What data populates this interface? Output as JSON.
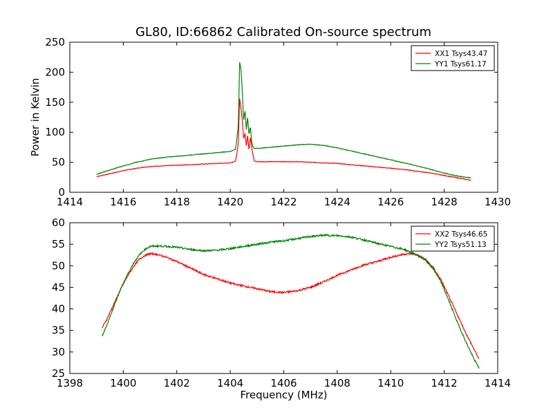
{
  "title": "GL80, ID:66862 Calibrated On-source spectrum",
  "colors": {
    "xx": "#ff0000",
    "yy": "#008000"
  },
  "chart_data": [
    {
      "type": "line",
      "title": "GL80, ID:66862 Calibrated On-source spectrum",
      "xlabel": "",
      "ylabel": "Power in Kelvin",
      "xlim": [
        1414,
        1430
      ],
      "ylim": [
        0,
        250
      ],
      "xticks": [
        1414,
        1416,
        1418,
        1420,
        1422,
        1424,
        1426,
        1428,
        1430
      ],
      "yticks": [
        0,
        50,
        100,
        150,
        200,
        250
      ],
      "legend_position": "top-right",
      "series": [
        {
          "name": "XX1 Tsys43.47",
          "color": "#ff0000",
          "x": [
            1415.0,
            1415.5,
            1416.0,
            1416.5,
            1417.0,
            1417.5,
            1418.0,
            1418.5,
            1419.0,
            1419.5,
            1420.0,
            1420.2,
            1420.3,
            1420.35,
            1420.4,
            1420.45,
            1420.5,
            1420.55,
            1420.6,
            1420.65,
            1420.7,
            1420.75,
            1420.8,
            1420.85,
            1420.9,
            1421.0,
            1421.5,
            1422.0,
            1422.5,
            1423.0,
            1423.5,
            1424.0,
            1424.5,
            1425.0,
            1425.5,
            1426.0,
            1426.5,
            1427.0,
            1427.5,
            1428.0,
            1428.5,
            1429.0
          ],
          "y": [
            26,
            31,
            36,
            40,
            43,
            44,
            45,
            46,
            47,
            48,
            49,
            52,
            80,
            157,
            140,
            120,
            88,
            100,
            78,
            95,
            70,
            93,
            75,
            62,
            52,
            51,
            51,
            51,
            51,
            50,
            49,
            48,
            46,
            44,
            42,
            40,
            38,
            35,
            32,
            28,
            24,
            20
          ]
        },
        {
          "name": "YY1 Tsys61.17",
          "color": "#008000",
          "x": [
            1415.0,
            1415.5,
            1416.0,
            1416.5,
            1417.0,
            1417.5,
            1418.0,
            1418.5,
            1419.0,
            1419.5,
            1420.0,
            1420.2,
            1420.3,
            1420.35,
            1420.4,
            1420.45,
            1420.5,
            1420.55,
            1420.6,
            1420.65,
            1420.7,
            1420.75,
            1420.8,
            1420.85,
            1420.9,
            1421.0,
            1421.5,
            1422.0,
            1422.5,
            1423.0,
            1423.5,
            1424.0,
            1424.5,
            1425.0,
            1425.5,
            1426.0,
            1426.5,
            1427.0,
            1427.5,
            1428.0,
            1428.5,
            1429.0
          ],
          "y": [
            30,
            37,
            44,
            50,
            55,
            58,
            60,
            62,
            64,
            66,
            68,
            72,
            110,
            217,
            205,
            170,
            118,
            137,
            105,
            125,
            95,
            110,
            85,
            76,
            73,
            73,
            75,
            77,
            79,
            80,
            78,
            74,
            69,
            64,
            59,
            54,
            49,
            44,
            38,
            32,
            27,
            24
          ]
        }
      ]
    },
    {
      "type": "line",
      "title": "",
      "xlabel": "Frequency (MHz)",
      "ylabel": "",
      "xlim": [
        1398,
        1414
      ],
      "ylim": [
        25,
        60
      ],
      "xticks": [
        1398,
        1400,
        1402,
        1404,
        1406,
        1408,
        1410,
        1412,
        1414
      ],
      "yticks": [
        25,
        30,
        35,
        40,
        45,
        50,
        55,
        60
      ],
      "legend_position": "top-right",
      "series": [
        {
          "name": "XX2 Tsys46.65",
          "color": "#ff0000",
          "x": [
            1399.2,
            1399.4,
            1399.6,
            1399.8,
            1400.0,
            1400.2,
            1400.4,
            1400.6,
            1400.8,
            1401.0,
            1401.3,
            1401.6,
            1402.0,
            1402.5,
            1403.0,
            1403.5,
            1404.0,
            1404.5,
            1405.0,
            1405.5,
            1406.0,
            1406.5,
            1407.0,
            1407.5,
            1408.0,
            1408.5,
            1409.0,
            1409.5,
            1410.0,
            1410.5,
            1410.8,
            1411.0,
            1411.3,
            1411.6,
            1411.9,
            1412.2,
            1412.5,
            1412.8,
            1413.1,
            1413.3
          ],
          "y": [
            35.5,
            37.8,
            40.5,
            43.2,
            45.8,
            48.0,
            50.0,
            51.5,
            52.4,
            52.8,
            52.6,
            52.0,
            51.0,
            49.5,
            48.0,
            47.0,
            46.0,
            45.3,
            44.7,
            44.0,
            43.8,
            44.2,
            45.0,
            46.3,
            47.8,
            49.0,
            50.2,
            51.0,
            52.0,
            52.7,
            52.8,
            52.5,
            51.5,
            49.5,
            46.5,
            42.5,
            38.5,
            34.5,
            30.8,
            28.4
          ]
        },
        {
          "name": "YY2 Tsys51.13",
          "color": "#008000",
          "x": [
            1399.2,
            1399.4,
            1399.6,
            1399.8,
            1400.0,
            1400.2,
            1400.4,
            1400.6,
            1400.8,
            1401.0,
            1401.3,
            1401.6,
            1402.0,
            1402.5,
            1403.0,
            1403.5,
            1404.0,
            1404.5,
            1405.0,
            1405.5,
            1406.0,
            1406.5,
            1407.0,
            1407.5,
            1408.0,
            1408.5,
            1409.0,
            1409.5,
            1410.0,
            1410.5,
            1410.8,
            1411.0,
            1411.3,
            1411.6,
            1411.9,
            1412.2,
            1412.5,
            1412.8,
            1413.1,
            1413.3
          ],
          "y": [
            33.5,
            36.5,
            39.8,
            43.0,
            46.0,
            48.5,
            50.8,
            52.5,
            53.8,
            54.5,
            54.6,
            54.5,
            54.3,
            53.8,
            53.5,
            53.6,
            54.0,
            54.5,
            55.0,
            55.5,
            55.8,
            56.3,
            56.8,
            57.1,
            57.0,
            56.7,
            56.0,
            55.2,
            54.5,
            53.8,
            53.0,
            52.4,
            51.3,
            49.2,
            46.0,
            41.5,
            36.8,
            32.5,
            28.5,
            26.3
          ]
        }
      ]
    }
  ]
}
